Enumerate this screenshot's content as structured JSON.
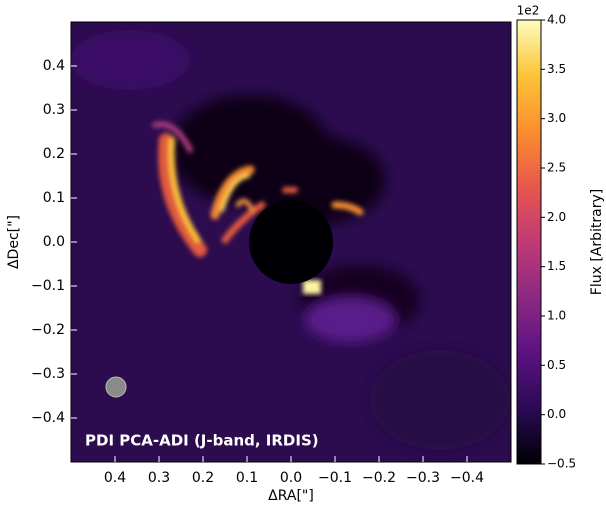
{
  "chart_data": {
    "type": "image",
    "annotation": "PDI PCA-ADI (J-band, IRDIS)",
    "xlabel": "ΔRA[\"]",
    "ylabel": "ΔDec[\"]",
    "xlim": [
      0.5,
      -0.5
    ],
    "ylim": [
      -0.5,
      0.5
    ],
    "xticks": [
      {
        "value": 0.4,
        "label": "0.4"
      },
      {
        "value": 0.3,
        "label": "0.3"
      },
      {
        "value": 0.2,
        "label": "0.2"
      },
      {
        "value": 0.1,
        "label": "0.1"
      },
      {
        "value": 0,
        "label": "0.0"
      },
      {
        "value": -0.1,
        "label": "−0.1"
      },
      {
        "value": -0.2,
        "label": "−0.2"
      },
      {
        "value": -0.3,
        "label": "−0.3"
      },
      {
        "value": -0.4,
        "label": "−0.4"
      }
    ],
    "yticks": [
      {
        "value": 0.4,
        "label": "0.4"
      },
      {
        "value": 0.3,
        "label": "0.3"
      },
      {
        "value": 0.2,
        "label": "0.2"
      },
      {
        "value": 0.1,
        "label": "0.1"
      },
      {
        "value": 0,
        "label": "0.0"
      },
      {
        "value": -0.1,
        "label": "−0.1"
      },
      {
        "value": -0.2,
        "label": "−0.2"
      },
      {
        "value": -0.3,
        "label": "−0.3"
      },
      {
        "value": -0.4,
        "label": "−0.4"
      }
    ],
    "colorbar": {
      "label": "Flux [Arbitrary]",
      "offset_text": "1e2",
      "lim": [
        -0.5,
        4.0
      ],
      "ticks": [
        {
          "value": -0.5,
          "label": "−0.5"
        },
        {
          "value": 0,
          "label": "0.0"
        },
        {
          "value": 0.5,
          "label": "0.5"
        },
        {
          "value": 1,
          "label": "1.0"
        },
        {
          "value": 1.5,
          "label": "1.5"
        },
        {
          "value": 2,
          "label": "2.0"
        },
        {
          "value": 2.5,
          "label": "2.5"
        },
        {
          "value": 3,
          "label": "3.0"
        },
        {
          "value": 3.5,
          "label": "3.5"
        },
        {
          "value": 4,
          "label": "4.0"
        }
      ],
      "colors": [
        "#000004",
        "#2a0a55",
        "#5c1282",
        "#8c2981",
        "#c03a76",
        "#e8574d",
        "#fb8e2e",
        "#fcc438",
        "#fcfdbf"
      ]
    }
  }
}
